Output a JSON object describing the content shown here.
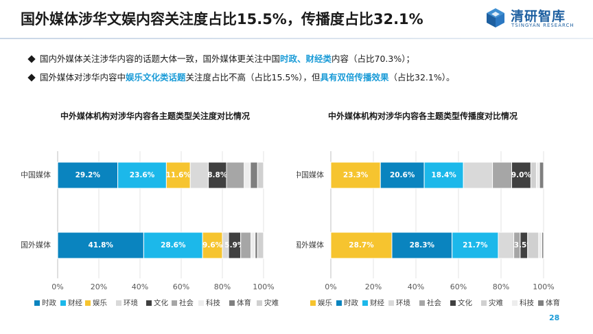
{
  "header": {
    "title": "国外媒体涉华文娱内容关注度占比15.5%，传播度占比32.1%",
    "logo_name": "清研智库",
    "logo_sub": "TSINGYAN RESEARCH"
  },
  "bullets": [
    [
      {
        "text": "国内外媒体关注涉华内容的话题大体一致，国外媒体更关注中国",
        "hl": false
      },
      {
        "text": "时政、财经类",
        "hl": true
      },
      {
        "text": "内容（占比70.3%）；",
        "hl": false
      }
    ],
    [
      {
        "text": "国外媒体对涉华内容中",
        "hl": false
      },
      {
        "text": "娱乐文化类话题",
        "hl": true
      },
      {
        "text": "关注度占比不高（占比15.5%），但",
        "hl": false
      },
      {
        "text": "具有双倍传播效果",
        "hl": true
      },
      {
        "text": "（占比32.1%）。",
        "hl": false
      }
    ]
  ],
  "colors": {
    "时政": "#0a84bf",
    "财经": "#1cb8ea",
    "娱乐": "#f6c42f",
    "环境": "#d9d9d9",
    "文化": "#404040",
    "社会": "#a6a6a6",
    "科技": "#ededed",
    "体育": "#7f7f7f",
    "灾难": "#d0d0d0"
  },
  "chart_data": [
    {
      "type": "bar",
      "orientation": "horizontal",
      "stacked": true,
      "title": "中外媒体机构对涉华内容各主题类型关注度对比情况",
      "categories": [
        "中国媒体",
        "国外媒体"
      ],
      "xlim": [
        0,
        100
      ],
      "xticks": [
        "0%",
        "20%",
        "40%",
        "60%",
        "80%",
        "100%"
      ],
      "legend_position": "bottom",
      "legend": [
        "时政",
        "财经",
        "娱乐",
        "环境",
        "文化",
        "社会",
        "科技",
        "体育",
        "灾难"
      ],
      "series": [
        {
          "name": "时政",
          "values": [
            29.2,
            41.8
          ],
          "labels": [
            "29.2%",
            "41.8%"
          ]
        },
        {
          "name": "财经",
          "values": [
            23.6,
            28.6
          ],
          "labels": [
            "23.6%",
            "28.6%"
          ]
        },
        {
          "name": "娱乐",
          "values": [
            11.6,
            9.6
          ],
          "labels": [
            "11.6%",
            "9.6%"
          ]
        },
        {
          "name": "环境",
          "values": [
            8.8,
            3.0
          ],
          "labels": [
            "",
            ""
          ]
        },
        {
          "name": "文化",
          "values": [
            8.8,
            5.9
          ],
          "labels": [
            "8.8%",
            "5.9%"
          ]
        },
        {
          "name": "社会",
          "values": [
            8.6,
            5.0
          ],
          "labels": [
            "",
            ""
          ]
        },
        {
          "name": "科技",
          "values": [
            3.0,
            2.0
          ],
          "labels": [
            "",
            ""
          ]
        },
        {
          "name": "体育",
          "values": [
            3.5,
            1.2
          ],
          "labels": [
            "",
            ""
          ]
        },
        {
          "name": "灾难",
          "values": [
            2.9,
            2.9
          ],
          "labels": [
            "",
            ""
          ]
        }
      ]
    },
    {
      "type": "bar",
      "orientation": "horizontal",
      "stacked": true,
      "title": "中外媒体机构对涉华内容各主题类型传播度对比情况",
      "categories": [
        "中国媒体",
        "国外媒体"
      ],
      "xlim": [
        0,
        100
      ],
      "xticks": [
        "0%",
        "20%",
        "40%",
        "60%",
        "80%",
        "100%"
      ],
      "legend_position": "bottom",
      "legend": [
        "娱乐",
        "时政",
        "财经",
        "环境",
        "社会",
        "文化",
        "灾难",
        "科技",
        "体育"
      ],
      "series": [
        {
          "name": "娱乐",
          "values": [
            23.3,
            28.7
          ],
          "labels": [
            "23.3%",
            "28.7%"
          ]
        },
        {
          "name": "时政",
          "values": [
            20.6,
            28.3
          ],
          "labels": [
            "20.6%",
            "28.3%"
          ]
        },
        {
          "name": "财经",
          "values": [
            18.4,
            21.7
          ],
          "labels": [
            "18.4%",
            "21.7%"
          ]
        },
        {
          "name": "环境",
          "values": [
            13.7,
            7.3
          ],
          "labels": [
            "",
            ""
          ]
        },
        {
          "name": "社会",
          "values": [
            9.0,
            3.0
          ],
          "labels": [
            "",
            ""
          ]
        },
        {
          "name": "文化",
          "values": [
            9.0,
            3.5
          ],
          "labels": [
            "9.0%",
            "3.5%"
          ]
        },
        {
          "name": "灾难",
          "values": [
            2.6,
            5.2
          ],
          "labels": [
            "",
            ""
          ]
        },
        {
          "name": "科技",
          "values": [
            1.5,
            1.5
          ],
          "labels": [
            "",
            ""
          ]
        },
        {
          "name": "体育",
          "values": [
            1.9,
            0.8
          ],
          "labels": [
            "",
            ""
          ]
        }
      ]
    }
  ],
  "page_number": "28"
}
